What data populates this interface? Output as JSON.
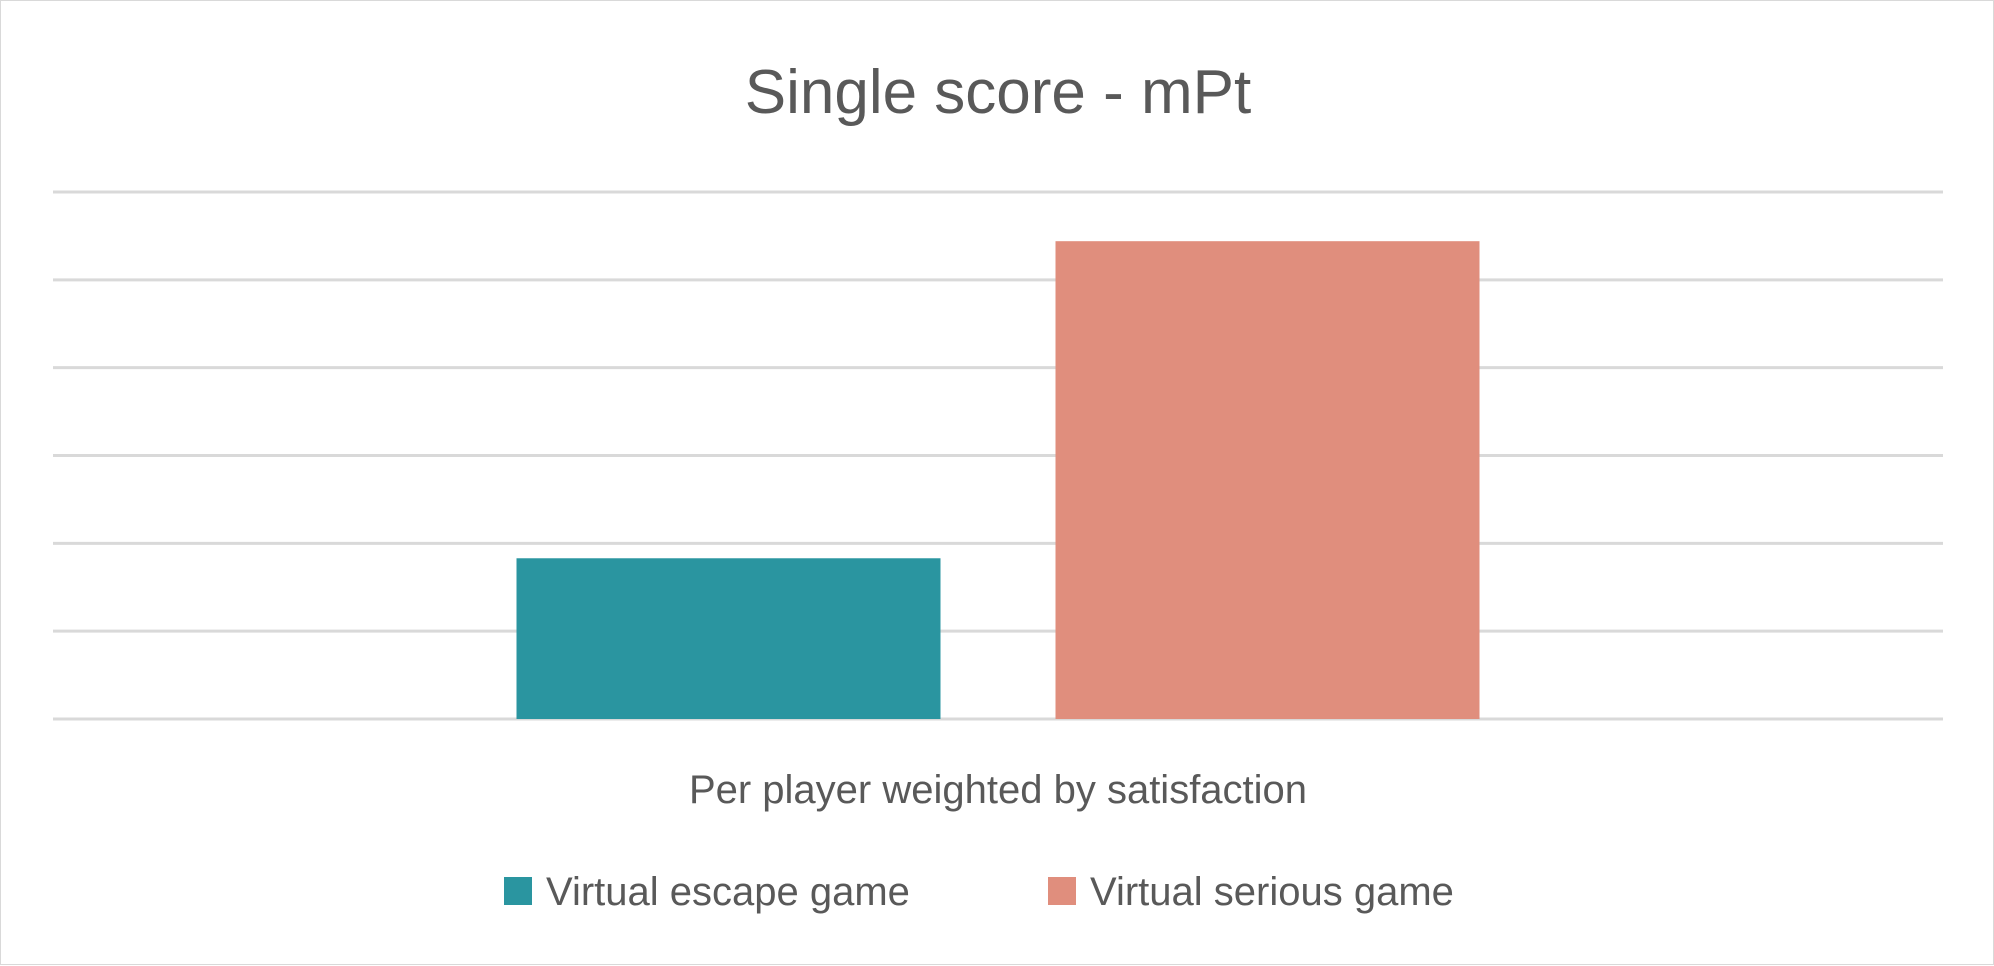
{
  "chart_data": {
    "type": "bar",
    "title": "Single score - mPt",
    "categories": [
      "Per player weighted by satisfaction"
    ],
    "xlabel": "Per player weighted by satisfaction",
    "ylabel": "",
    "ylim": [
      0,
      6
    ],
    "grid": true,
    "legend_position": "bottom",
    "series": [
      {
        "name": "Virtual escape game",
        "values": [
          1.83
        ],
        "color": "#2a95a0"
      },
      {
        "name": "Virtual serious game",
        "values": [
          5.44
        ],
        "color": "#e08e7d"
      }
    ]
  }
}
